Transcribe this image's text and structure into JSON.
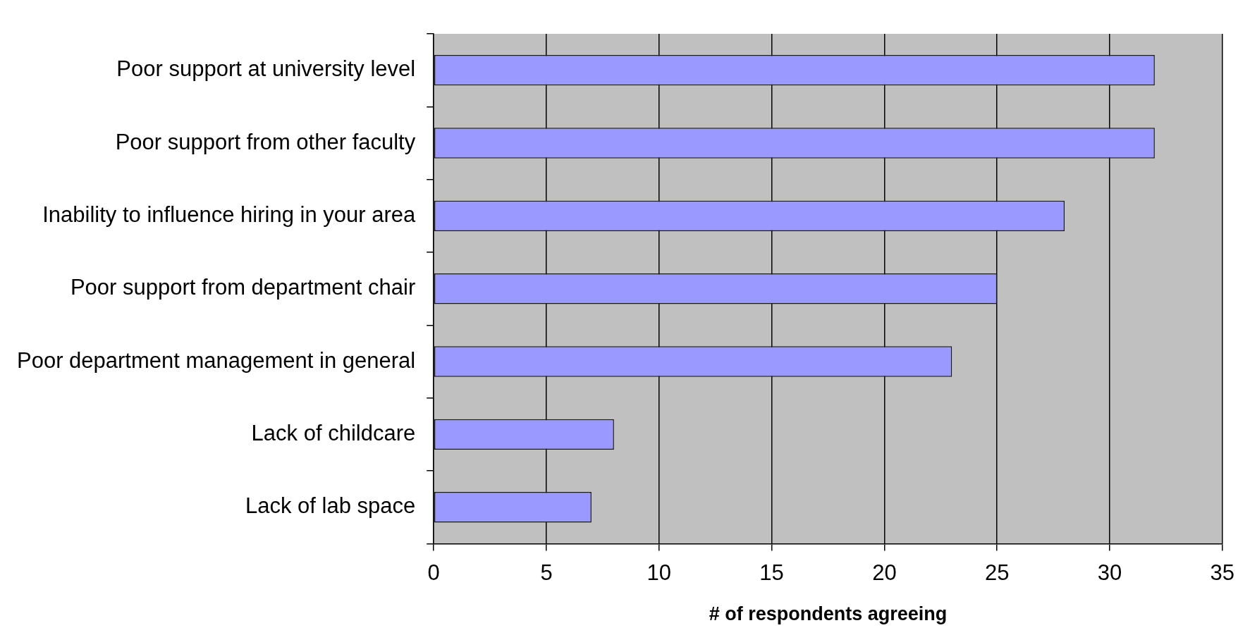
{
  "chart_data": {
    "type": "bar",
    "orientation": "horizontal",
    "xlabel": "# of respondents agreeing",
    "categories": [
      "Poor support at university level",
      "Poor support from other faculty",
      "Inability to influence hiring in your area",
      "Poor support from department chair",
      "Poor department management in general",
      "Lack of childcare",
      "Lack of lab space"
    ],
    "values": [
      32,
      32,
      28,
      25,
      23,
      8,
      7
    ],
    "color": "#9999ff",
    "xlim": [
      0,
      35
    ],
    "xticks": [
      0,
      5,
      10,
      15,
      20,
      25,
      30,
      35
    ],
    "grid": "x",
    "legend": false
  }
}
